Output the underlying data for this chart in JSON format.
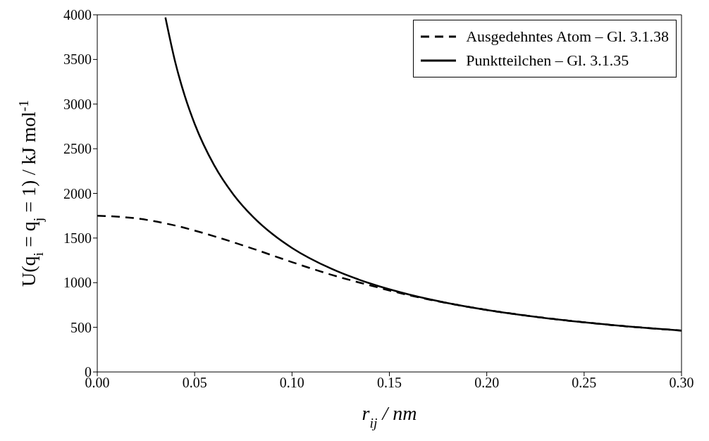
{
  "chart_data": {
    "type": "line",
    "xlabel": "r$_{ij}$ / nm",
    "ylabel": "U(q$_{i}$ = q$_{j}$ = 1) / kJ mol$^{-1}$",
    "xlim": [
      0,
      0.3
    ],
    "xticks": [
      {
        "value": 0,
        "label": "0.00"
      },
      {
        "value": 0.05,
        "label": "0.05"
      },
      {
        "value": 0.1,
        "label": "0.10"
      },
      {
        "value": 0.15,
        "label": "0.15"
      },
      {
        "value": 0.2,
        "label": "0.20"
      },
      {
        "value": 0.25,
        "label": "0.25"
      },
      {
        "value": 0.3,
        "label": "0.30"
      }
    ],
    "ylim": [
      0,
      4000
    ],
    "yticks": [
      0,
      500,
      1000,
      1500,
      2000,
      2500,
      3000,
      3500,
      4000
    ],
    "legend": "top right",
    "series": [
      {
        "name": "Ausgedehntes Atom – Gl. 3.1.38",
        "color": "#000000",
        "line_style": "dashed",
        "x": [
          0,
          0.02,
          0.04,
          0.06,
          0.08,
          0.1,
          0.12,
          0.14,
          0.16,
          0.18,
          0.2,
          0.25,
          0.3
        ],
        "values": [
          1750,
          1720,
          1640,
          1520,
          1380,
          1230,
          1090,
          970,
          860,
          770,
          695,
          556,
          463
        ]
      },
      {
        "name": "Punktteilchen – Gl. 3.1.35",
        "color": "#000000",
        "line_style": "solid",
        "x": [
          0.035,
          0.04,
          0.045,
          0.05,
          0.06,
          0.07,
          0.08,
          0.09,
          0.1,
          0.12,
          0.14,
          0.16,
          0.18,
          0.2,
          0.25,
          0.3
        ],
        "values": [
          3970,
          3473,
          3087,
          2779,
          2316,
          1985,
          1737,
          1544,
          1389,
          1158,
          992,
          868,
          772,
          695,
          556,
          463
        ]
      }
    ]
  }
}
